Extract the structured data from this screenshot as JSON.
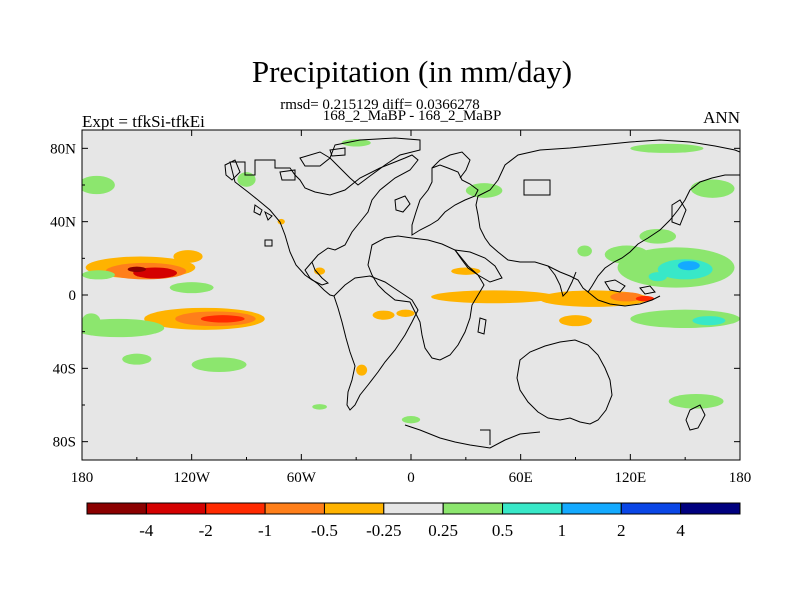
{
  "chart_data": {
    "type": "heatmap",
    "title": "Precipitation (in mm/day)",
    "stats_line": "rmsd= 0.215129 diff= 0.0366278",
    "cases_line": "168_2_MaBP - 168_2_MaBP",
    "left_label": "Expt = tfkSi-tfkEi",
    "right_label": "ANN",
    "x_ticks": [
      {
        "lon": -180,
        "label": "180"
      },
      {
        "lon": -120,
        "label": "120W"
      },
      {
        "lon": -60,
        "label": "60W"
      },
      {
        "lon": 0,
        "label": "0"
      },
      {
        "lon": 60,
        "label": "60E"
      },
      {
        "lon": 120,
        "label": "120E"
      },
      {
        "lon": 180,
        "label": "180"
      }
    ],
    "y_ticks": [
      {
        "lat": 80,
        "label": "80N"
      },
      {
        "lat": 40,
        "label": "40N"
      },
      {
        "lat": 0,
        "label": "0"
      },
      {
        "lat": -40,
        "label": "40S"
      },
      {
        "lat": -80,
        "label": "80S"
      }
    ],
    "lon_range": [
      -180,
      180
    ],
    "lat_range": [
      -90,
      90
    ],
    "colorbar": {
      "levels": [
        "-4",
        "-2",
        "-1",
        "-0.5",
        "-0.25",
        "0.25",
        "0.5",
        "1",
        "2",
        "4"
      ],
      "colors": [
        "#8b0000",
        "#d40000",
        "#ff2a00",
        "#ff7f1a",
        "#ffb300",
        "#e6e6e6",
        "#8ce66e",
        "#38e8c8",
        "#14aaff",
        "#0a46e6",
        "#00007f"
      ]
    },
    "anomaly_regions": [
      {
        "lon": -148,
        "lat": 15,
        "rlon": 30,
        "rlat": 6,
        "bin": 4
      },
      {
        "lon": -145,
        "lat": 13,
        "rlon": 22,
        "rlat": 4.5,
        "bin": 3
      },
      {
        "lon": -140,
        "lat": 12,
        "rlon": 12,
        "rlat": 3,
        "bin": 1
      },
      {
        "lon": -150,
        "lat": 14,
        "rlon": 5,
        "rlat": 1.5,
        "bin": 0
      },
      {
        "lon": -113,
        "lat": -13,
        "rlon": 33,
        "rlat": 6,
        "bin": 4
      },
      {
        "lon": -107,
        "lat": -13,
        "rlon": 22,
        "rlat": 4,
        "bin": 3
      },
      {
        "lon": -103,
        "lat": -13,
        "rlon": 12,
        "rlat": 2,
        "bin": 2
      },
      {
        "lon": 45,
        "lat": -1,
        "rlon": 34,
        "rlat": 3.5,
        "bin": 4
      },
      {
        "lon": 100,
        "lat": -2,
        "rlon": 30,
        "rlat": 4.5,
        "bin": 4
      },
      {
        "lon": 118,
        "lat": -1,
        "rlon": 9,
        "rlat": 2.5,
        "bin": 3
      },
      {
        "lon": 128,
        "lat": -2,
        "rlon": 5,
        "rlat": 1.5,
        "bin": 2
      },
      {
        "lon": 90,
        "lat": -14,
        "rlon": 9,
        "rlat": 3,
        "bin": 4
      },
      {
        "lon": -15,
        "lat": -11,
        "rlon": 6,
        "rlat": 2.5,
        "bin": 4
      },
      {
        "lon": -3,
        "lat": -10,
        "rlon": 5,
        "rlat": 2,
        "bin": 4
      },
      {
        "lon": 30,
        "lat": 13,
        "rlon": 8,
        "rlat": 2,
        "bin": 4
      },
      {
        "lon": -27,
        "lat": -41,
        "rlon": 3,
        "rlat": 3,
        "bin": 4
      },
      {
        "lon": -122,
        "lat": 21,
        "rlon": 8,
        "rlat": 3.5,
        "bin": 4
      },
      {
        "lon": -50,
        "lat": 13,
        "rlon": 3,
        "rlat": 2,
        "bin": 4
      },
      {
        "lon": -71,
        "lat": 40,
        "rlon": 2,
        "rlat": 1.5,
        "bin": 4
      },
      {
        "lon": -171,
        "lat": 11,
        "rlon": 9,
        "rlat": 2.5,
        "bin": 6
      },
      {
        "lon": -172,
        "lat": 60,
        "rlon": 10,
        "rlat": 5,
        "bin": 6
      },
      {
        "lon": -90,
        "lat": 63,
        "rlon": 5,
        "rlat": 4,
        "bin": 6
      },
      {
        "lon": 40,
        "lat": 57,
        "rlon": 10,
        "rlat": 4,
        "bin": 6
      },
      {
        "lon": -30,
        "lat": 83,
        "rlon": 8,
        "rlat": 2,
        "bin": 6
      },
      {
        "lon": 140,
        "lat": 80,
        "rlon": 20,
        "rlat": 2.5,
        "bin": 6
      },
      {
        "lon": 165,
        "lat": 58,
        "rlon": 12,
        "rlat": 5,
        "bin": 6
      },
      {
        "lon": 135,
        "lat": 32,
        "rlon": 10,
        "rlat": 4,
        "bin": 6
      },
      {
        "lon": 145,
        "lat": 15,
        "rlon": 32,
        "rlat": 11,
        "bin": 6
      },
      {
        "lon": 118,
        "lat": 22,
        "rlon": 12,
        "rlat": 5,
        "bin": 6
      },
      {
        "lon": 150,
        "lat": 14,
        "rlon": 15,
        "rlat": 5.5,
        "bin": 7
      },
      {
        "lon": 152,
        "lat": 16,
        "rlon": 6,
        "rlat": 2.5,
        "bin": 8
      },
      {
        "lon": 135,
        "lat": 10,
        "rlon": 5,
        "rlat": 2.5,
        "bin": 7
      },
      {
        "lon": 150,
        "lat": -13,
        "rlon": 30,
        "rlat": 5,
        "bin": 6
      },
      {
        "lon": 163,
        "lat": -14,
        "rlon": 9,
        "rlat": 2.5,
        "bin": 7
      },
      {
        "lon": -160,
        "lat": -18,
        "rlon": 25,
        "rlat": 5,
        "bin": 6
      },
      {
        "lon": -120,
        "lat": 4,
        "rlon": 12,
        "rlat": 3,
        "bin": 6
      },
      {
        "lon": -105,
        "lat": -38,
        "rlon": 15,
        "rlat": 4,
        "bin": 6
      },
      {
        "lon": -150,
        "lat": -35,
        "rlon": 8,
        "rlat": 3,
        "bin": 6
      },
      {
        "lon": -175,
        "lat": -14,
        "rlon": 5,
        "rlat": 4,
        "bin": 6
      },
      {
        "lon": -50,
        "lat": -61,
        "rlon": 4,
        "rlat": 1.5,
        "bin": 6
      },
      {
        "lon": 0,
        "lat": -68,
        "rlon": 5,
        "rlat": 2,
        "bin": 6
      },
      {
        "lon": 156,
        "lat": -58,
        "rlon": 15,
        "rlat": 4,
        "bin": 6
      },
      {
        "lon": 95,
        "lat": 24,
        "rlon": 4,
        "rlat": 3,
        "bin": 6
      }
    ]
  }
}
